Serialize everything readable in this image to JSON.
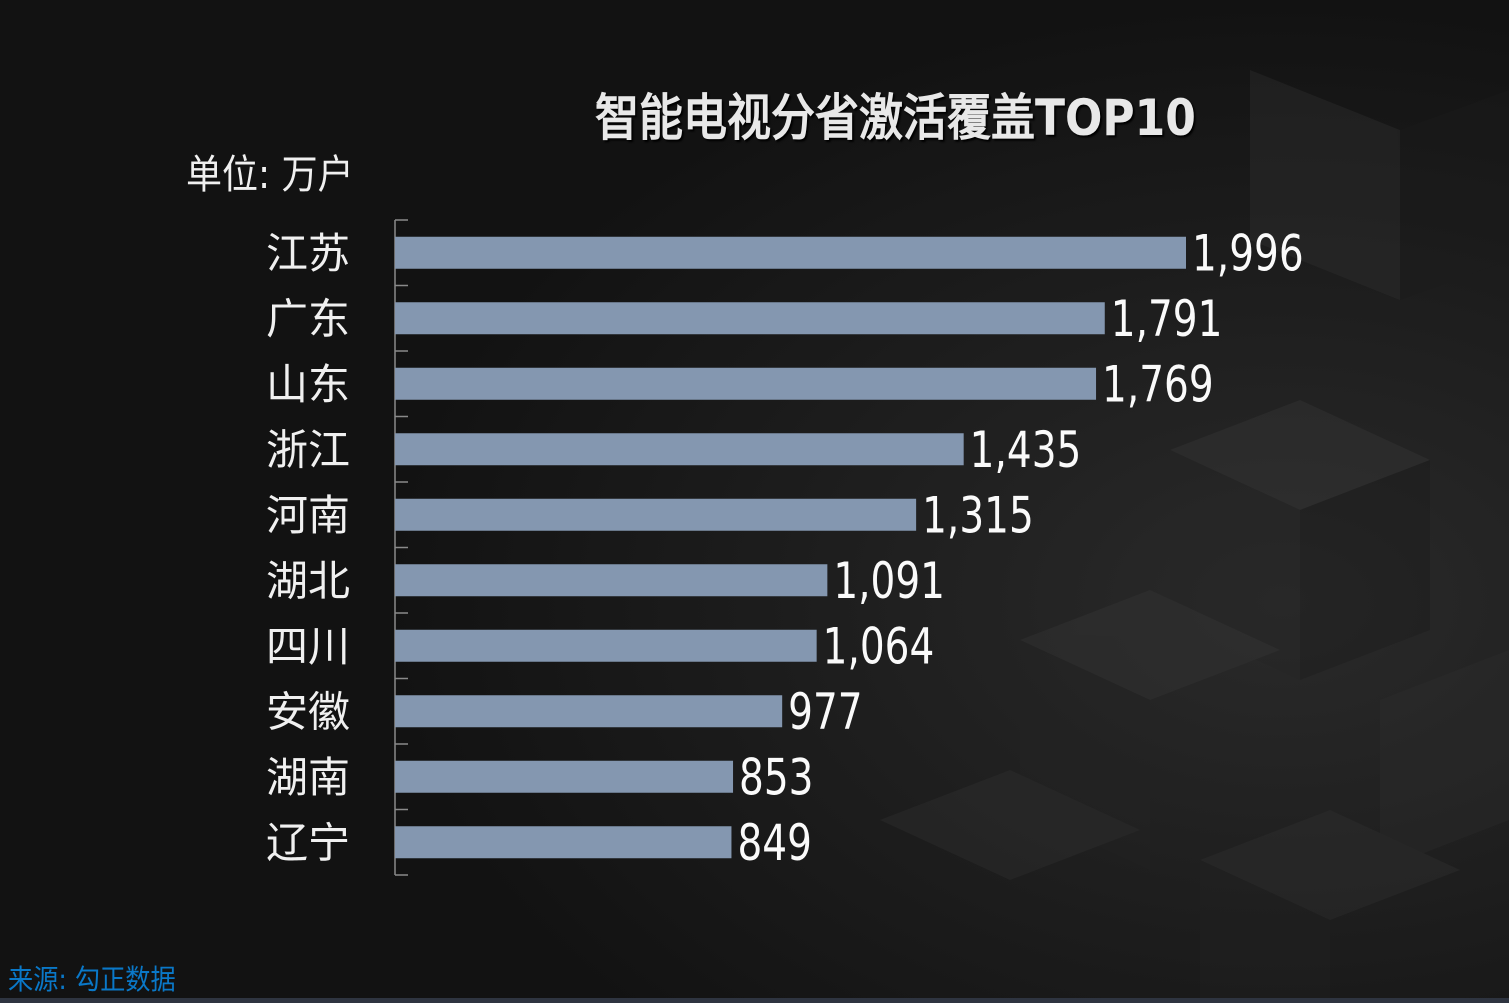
{
  "chart_data": {
    "type": "bar",
    "orientation": "horizontal",
    "title": "智能电视分省激活覆盖TOP10",
    "unit_label": "单位: 万户",
    "categories": [
      "江苏",
      "广东",
      "山东",
      "浙江",
      "河南",
      "湖北",
      "四川",
      "安徽",
      "湖南",
      "辽宁"
    ],
    "values": [
      1996,
      1791,
      1769,
      1435,
      1315,
      1091,
      1064,
      977,
      853,
      849
    ],
    "value_labels": [
      "1,996",
      "1,791",
      "1,769",
      "1,435",
      "1,315",
      "1,091",
      "1,064",
      "977",
      "853",
      "849"
    ],
    "xlim": [
      0,
      1996
    ],
    "grid": false,
    "bar_color": "#8497b0",
    "source": "来源: 勾正数据"
  }
}
